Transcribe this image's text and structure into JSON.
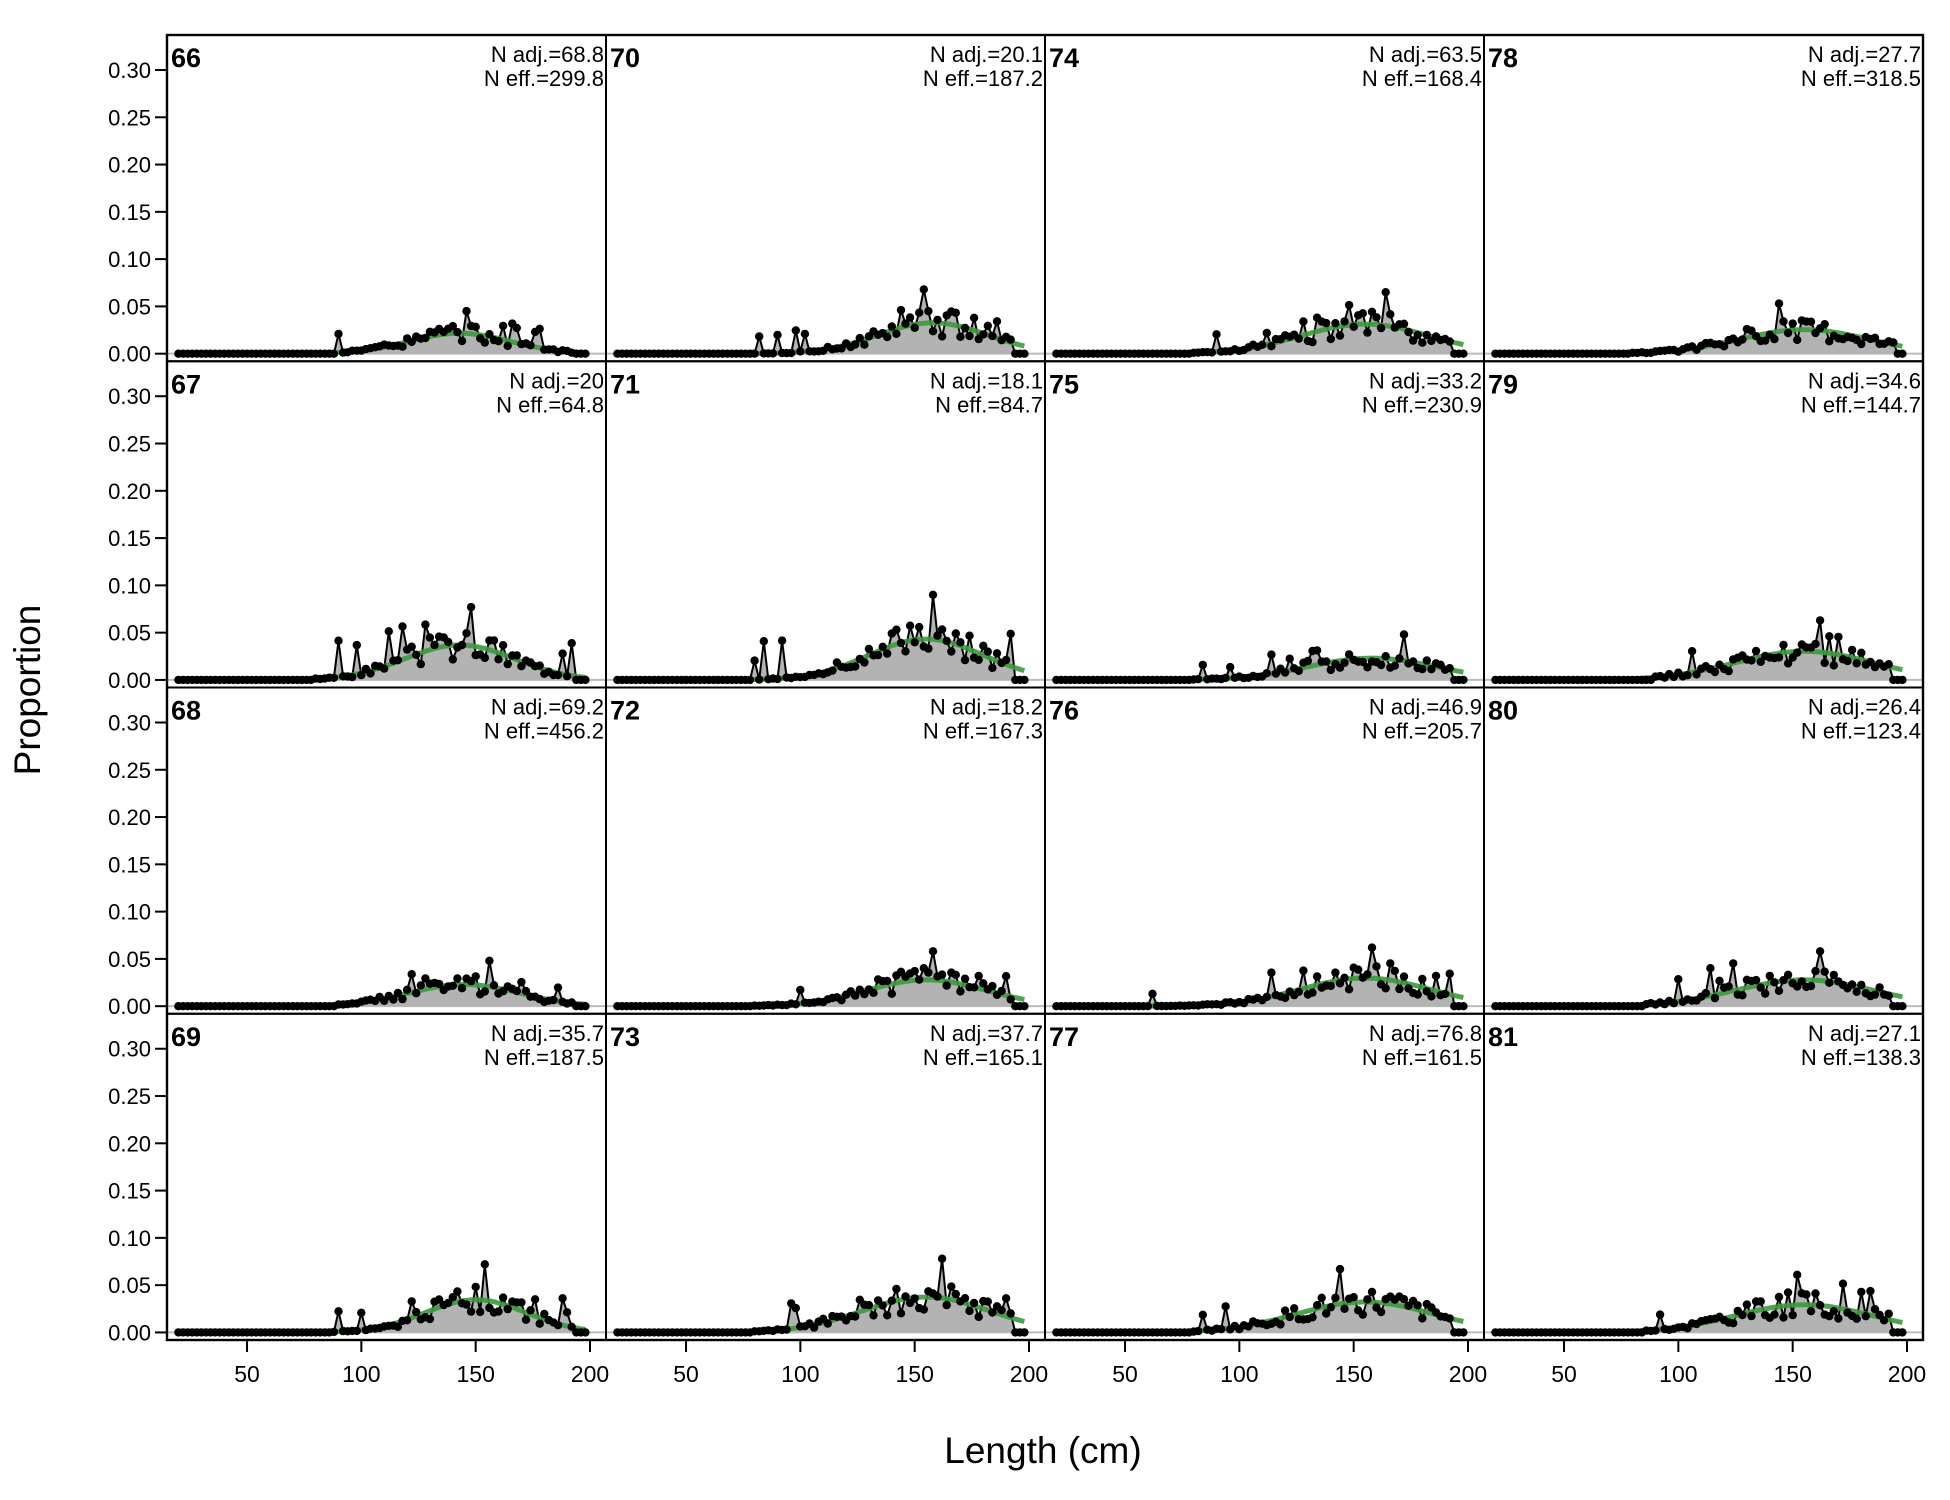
{
  "chart_data": {
    "type": "area",
    "description_of_panels": "4x4 grid of length-composition panels; observed proportions as grey area with black points/line, expected as green line",
    "xlabel": "Length (cm)",
    "ylabel": "Proportion",
    "xlim": [
      15,
      207
    ],
    "ylim": [
      -0.008,
      0.337
    ],
    "xticks": [
      "50",
      "100",
      "150",
      "200"
    ],
    "yticks": [
      "0.00",
      "0.05",
      "0.10",
      "0.15",
      "0.20",
      "0.25",
      "0.30"
    ],
    "colors": {
      "observed_fill": "#b3b3b3",
      "observed_line": "#000000",
      "expected": "#3b9a3b",
      "zero_line": "#bbbbbb"
    },
    "panels": [
      {
        "year": "66",
        "n_adj": "N adj.=68.8",
        "n_eff": "N eff.=299.8",
        "peak": 0.045,
        "mode": 143,
        "spread": 22,
        "x_low": 90,
        "x_high": 192,
        "noise": 0.01,
        "seed": 66
      },
      {
        "year": "67",
        "n_adj": "N adj.=20",
        "n_eff": "N eff.=64.8",
        "peak": 0.077,
        "mode": 143,
        "spread": 24,
        "x_low": 80,
        "x_high": 192,
        "noise": 0.022,
        "seed": 67
      },
      {
        "year": "68",
        "n_adj": "N adj.=69.2",
        "n_eff": "N eff.=456.2",
        "peak": 0.048,
        "mode": 145,
        "spread": 24,
        "x_low": 90,
        "x_high": 192,
        "noise": 0.008,
        "seed": 68
      },
      {
        "year": "69",
        "n_adj": "N adj.=35.7",
        "n_eff": "N eff.=187.5",
        "peak": 0.072,
        "mode": 150,
        "spread": 22,
        "x_low": 88,
        "x_high": 192,
        "noise": 0.015,
        "seed": 69
      },
      {
        "year": "70",
        "n_adj": "N adj.=20.1",
        "n_eff": "N eff.=187.2",
        "peak": 0.068,
        "mode": 158,
        "spread": 24,
        "x_low": 80,
        "x_high": 192,
        "noise": 0.012,
        "seed": 70
      },
      {
        "year": "71",
        "n_adj": "N adj.=18.1",
        "n_eff": "N eff.=84.7",
        "peak": 0.09,
        "mode": 155,
        "spread": 25,
        "x_low": 80,
        "x_high": 192,
        "noise": 0.02,
        "seed": 71
      },
      {
        "year": "72",
        "n_adj": "N adj.=18.2",
        "n_eff": "N eff.=167.3",
        "peak": 0.058,
        "mode": 155,
        "spread": 26,
        "x_low": 80,
        "x_high": 192,
        "noise": 0.012,
        "seed": 72
      },
      {
        "year": "73",
        "n_adj": "N adj.=37.7",
        "n_eff": "N eff.=165.1",
        "peak": 0.078,
        "mode": 155,
        "spread": 28,
        "x_low": 80,
        "x_high": 192,
        "noise": 0.014,
        "seed": 73
      },
      {
        "year": "74",
        "n_adj": "N adj.=63.5",
        "n_eff": "N eff.=168.4",
        "peak": 0.065,
        "mode": 155,
        "spread": 28,
        "x_low": 80,
        "x_high": 192,
        "noise": 0.012,
        "seed": 74
      },
      {
        "year": "75",
        "n_adj": "N adj.=33.2",
        "n_eff": "N eff.=230.9",
        "peak": 0.048,
        "mode": 158,
        "spread": 28,
        "x_low": 80,
        "x_high": 192,
        "noise": 0.01,
        "seed": 75
      },
      {
        "year": "76",
        "n_adj": "N adj.=46.9",
        "n_eff": "N eff.=205.7",
        "peak": 0.062,
        "mode": 155,
        "spread": 28,
        "x_low": 62,
        "x_high": 192,
        "noise": 0.012,
        "seed": 76
      },
      {
        "year": "77",
        "n_adj": "N adj.=76.8",
        "n_eff": "N eff.=161.5",
        "peak": 0.067,
        "mode": 155,
        "spread": 30,
        "x_low": 80,
        "x_high": 192,
        "noise": 0.013,
        "seed": 77
      },
      {
        "year": "78",
        "n_adj": "N adj.=27.7",
        "n_eff": "N eff.=318.5",
        "peak": 0.053,
        "mode": 155,
        "spread": 28,
        "x_low": 80,
        "x_high": 195,
        "noise": 0.01,
        "seed": 78
      },
      {
        "year": "79",
        "n_adj": "N adj.=34.6",
        "n_eff": "N eff.=144.7",
        "peak": 0.063,
        "mode": 155,
        "spread": 30,
        "x_low": 90,
        "x_high": 192,
        "noise": 0.015,
        "seed": 79
      },
      {
        "year": "80",
        "n_adj": "N adj.=26.4",
        "n_eff": "N eff.=123.4",
        "peak": 0.058,
        "mode": 155,
        "spread": 30,
        "x_low": 85,
        "x_high": 192,
        "noise": 0.014,
        "seed": 80
      },
      {
        "year": "81",
        "n_adj": "N adj.=27.1",
        "n_eff": "N eff.=138.3",
        "peak": 0.061,
        "mode": 155,
        "spread": 30,
        "x_low": 85,
        "x_high": 192,
        "noise": 0.014,
        "seed": 81
      }
    ]
  }
}
